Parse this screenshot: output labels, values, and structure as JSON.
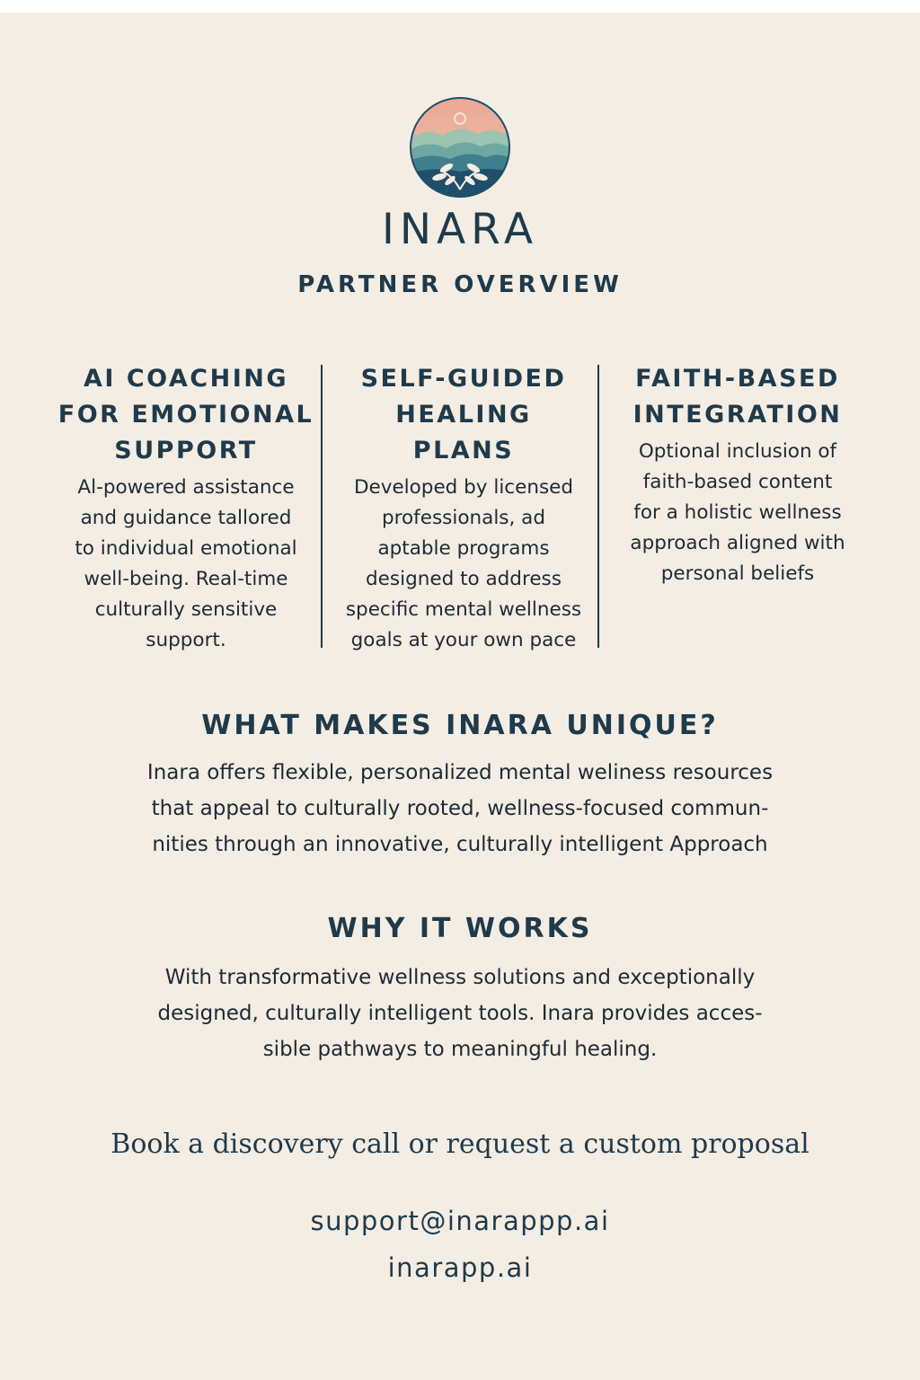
{
  "header": {
    "brand": "INARA",
    "subtitle": "PARTNER OVERVIEW"
  },
  "logo": {
    "icon": "lotus-landscape-emblem-icon",
    "colors": [
      "#e8a995",
      "#8fb9a8",
      "#3f7f8c",
      "#1f4f6b"
    ]
  },
  "features": [
    {
      "title": "AI COACHING\nFOR EMOTIONAL\nSUPPORT",
      "body": "Al-powered assistance\nand guidance tallored\nto individual emotional\nwell-being. Real-time\nculturally sensitive\nsupport."
    },
    {
      "title": "SELF-GUIDED\nHEALING\nPLANS",
      "body": "Developed by licensed\nprofessionals, ad\naptable programs\ndesigned to address\nspecific mental wellness\ngoals at your own pace"
    },
    {
      "title": "FAITH-BASED\nINTEGRATION",
      "body": "Optional inclusion of\nfaith-based content\nfor a holistic wellness\napproach aligned with\npersonal beliefs"
    }
  ],
  "unique": {
    "heading": "WHAT MAKES INARA UNIQUE?",
    "body": "Inara offers flexible, personalized mental weliness resources\nthat appeal to culturally rooted, wellness-focused commun-\nnities through an innovative, culturally intelligent Approach"
  },
  "works": {
    "heading": "WHY IT WORKS",
    "body": "With transformative wellness solutions and exceptionally\ndesigned, culturally intelligent tools. Inara provides acces-\nsible pathways to meaningful healing."
  },
  "cta": {
    "text": "Book a discovery call or request a custom proposal"
  },
  "contact": {
    "email": "support@inarappp.ai",
    "website": "inarapp.ai"
  },
  "colors": {
    "background": "#f4ede4",
    "text": "#1f3a4a"
  }
}
